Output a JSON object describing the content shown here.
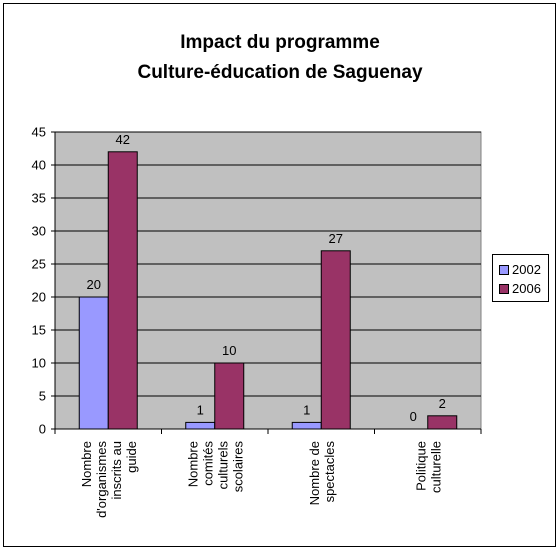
{
  "chart_data": {
    "type": "bar",
    "title_lines": [
      "Impact du programme",
      "Culture-éducation de Saguenay"
    ],
    "categories": [
      [
        "Nombre",
        "d'organismes",
        "inscrits au",
        "guide"
      ],
      [
        "Nombre",
        "comités",
        "culturels",
        "scolaires"
      ],
      [
        "Nombre de",
        "spectacles"
      ],
      [
        "Politique",
        "culturelle"
      ]
    ],
    "series": [
      {
        "name": "2002",
        "values": [
          20,
          1,
          1,
          0
        ],
        "color": "#9999ff"
      },
      {
        "name": "2006",
        "values": [
          42,
          10,
          27,
          2
        ],
        "color": "#993366"
      }
    ],
    "ylim": [
      0,
      45
    ],
    "yticks": [
      0,
      5,
      10,
      15,
      20,
      25,
      30,
      35,
      40,
      45
    ],
    "plot_background": "#c0c0c0",
    "grid": true,
    "legend_position": "right"
  }
}
